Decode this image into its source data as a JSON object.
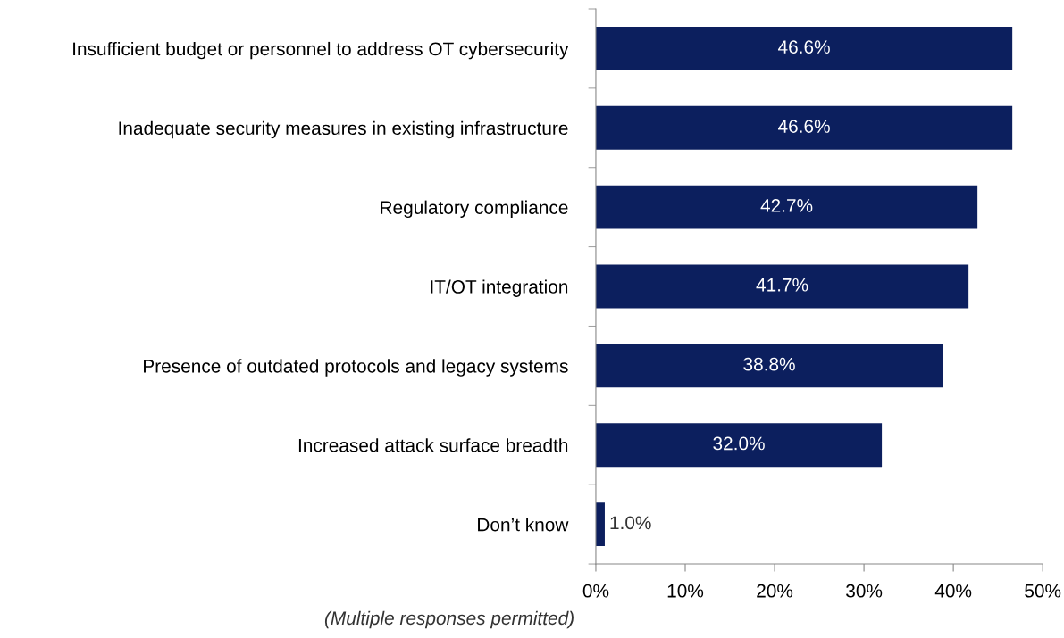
{
  "chart_data": {
    "type": "bar",
    "orientation": "horizontal",
    "categories": [
      "Insufficient budget or personnel to address OT cybersecurity",
      "Inadequate security measures in existing infrastructure",
      "Regulatory compliance",
      "IT/OT integration",
      "Presence of outdated protocols and legacy systems",
      "Increased attack surface breadth",
      "Don’t know"
    ],
    "values": [
      46.6,
      46.6,
      42.7,
      41.7,
      38.8,
      32.0,
      1.0
    ],
    "value_labels": [
      "46.6%",
      "46.6%",
      "42.7%",
      "41.7%",
      "38.8%",
      "32.0%",
      "1.0%"
    ],
    "color": "#0c1f5e",
    "xlim": [
      0,
      50
    ],
    "xticks": [
      {
        "value": 0,
        "label": "0%"
      },
      {
        "value": 10,
        "label": "10%"
      },
      {
        "value": 20,
        "label": "20%"
      },
      {
        "value": 30,
        "label": "30%"
      },
      {
        "value": 40,
        "label": "40%"
      },
      {
        "value": 50,
        "label": "50%"
      }
    ],
    "grid": false,
    "legend": false,
    "annotations": [
      "(Multiple responses permitted)"
    ]
  }
}
